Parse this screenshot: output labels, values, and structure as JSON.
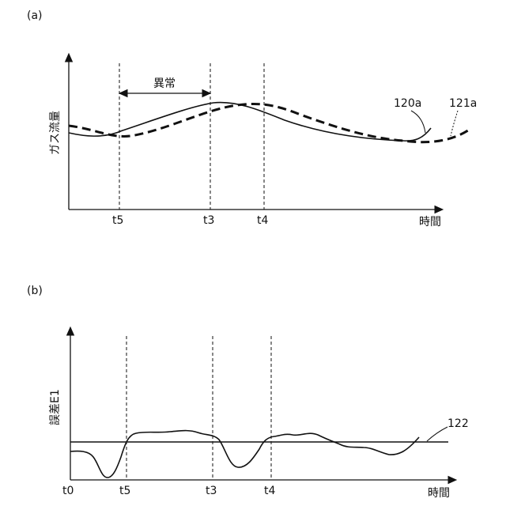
{
  "panel_a": {
    "label": "(a)",
    "ylabel": "ガス流量",
    "xlabel": "時間",
    "anomaly_label": "異常",
    "ticks": [
      "t5",
      "t3",
      "t4"
    ],
    "curve_labels": [
      "120a",
      "121a"
    ]
  },
  "panel_b": {
    "label": "(b)",
    "ylabel": "誤差E1",
    "xlabel": "時間",
    "ticks": [
      "t0",
      "t5",
      "t3",
      "t4"
    ],
    "line_label": "122"
  }
}
